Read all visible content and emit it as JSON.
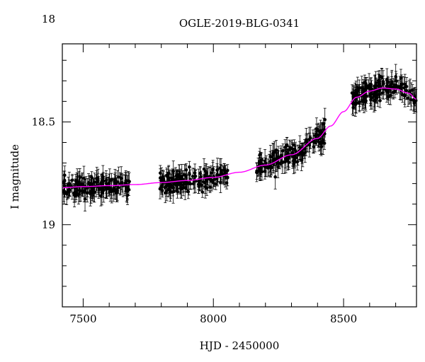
{
  "chart_data": {
    "type": "scatter",
    "title": "OGLE-2019-BLG-0341",
    "xlabel": "HJD - 2450000",
    "ylabel": "I magnitude",
    "xlim": [
      7420,
      8780
    ],
    "ylim": [
      19.4,
      18.12
    ],
    "y_inverted": true,
    "x_ticks": [
      7500,
      8000,
      8500
    ],
    "y_ticks": [
      18,
      18.5,
      19
    ],
    "x_tick_labels": [
      "7500",
      "8000",
      "8500"
    ],
    "y_tick_labels": [
      "18",
      "18.5",
      "19"
    ],
    "grid": false,
    "legend": "none",
    "colors": {
      "points": "#000000",
      "model": "#ff00ff"
    },
    "segments": [
      {
        "x_start": 7425,
        "x_end": 7680,
        "mag_center": 18.82
      },
      {
        "x_start": 7795,
        "x_end": 8055,
        "mag_center": 18.78
      },
      {
        "x_start": 8160,
        "x_end": 8430,
        "mag_center": 18.66
      },
      {
        "x_start": 8530,
        "x_end": 8780,
        "mag_center": 18.35
      }
    ],
    "model_curve": {
      "name": "",
      "x": [
        7420,
        7500,
        7600,
        7700,
        7800,
        7900,
        8000,
        8100,
        8200,
        8300,
        8400,
        8450,
        8500,
        8550,
        8600,
        8650,
        8700,
        8750,
        8780
      ],
      "y": [
        18.82,
        18.815,
        18.81,
        18.805,
        18.795,
        18.785,
        18.77,
        18.745,
        18.71,
        18.66,
        18.58,
        18.52,
        18.45,
        18.38,
        18.35,
        18.335,
        18.34,
        18.36,
        18.39
      ]
    }
  }
}
